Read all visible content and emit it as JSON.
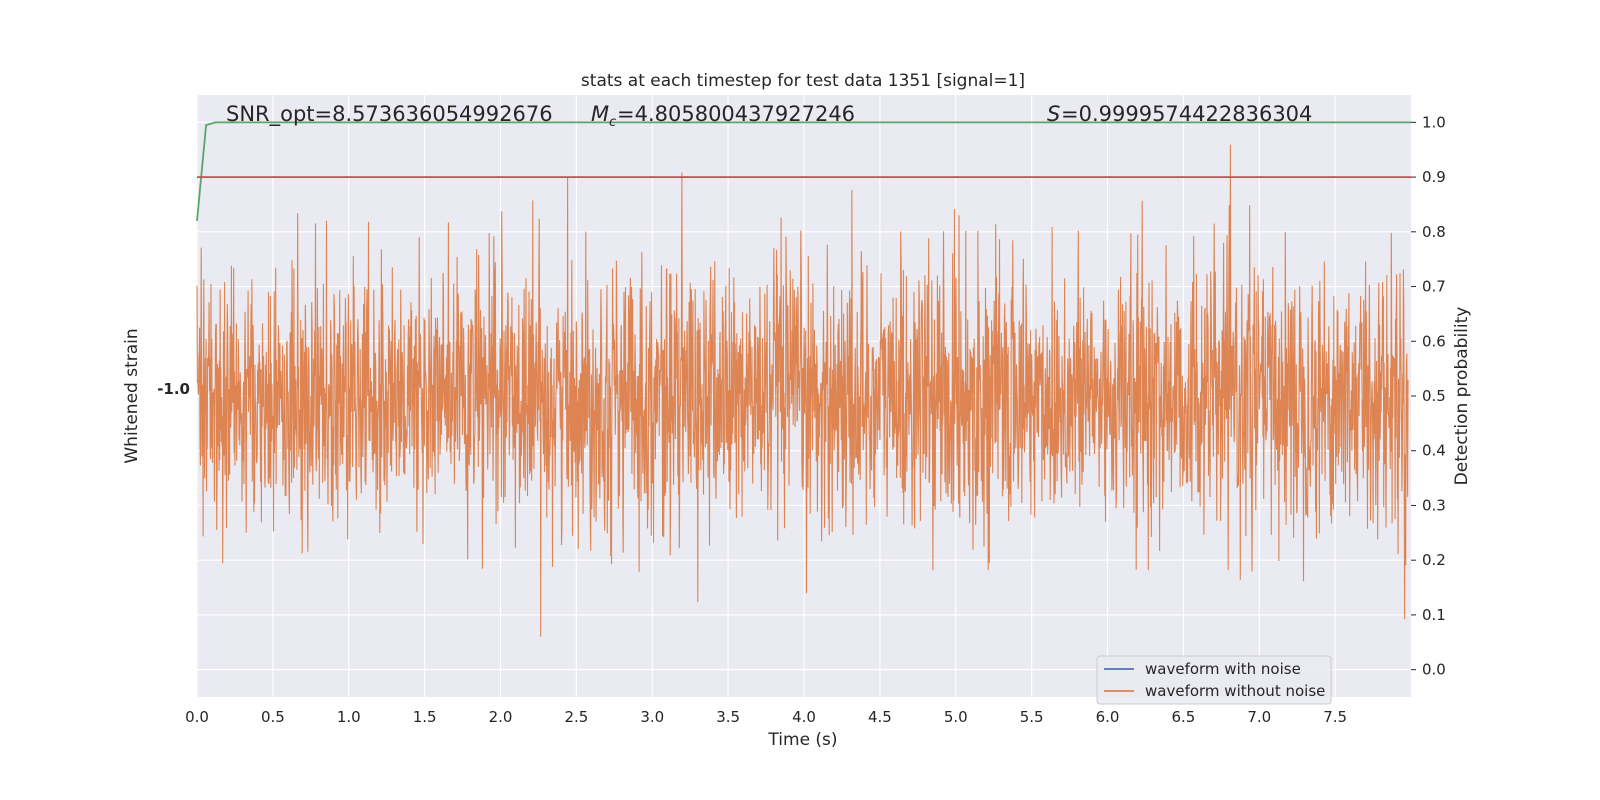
{
  "chart_data": {
    "type": "line",
    "title": "stats at each timestep for test data 1351 [signal=1]",
    "xlabel": "Time (s)",
    "ylabel_left": "Whitened strain",
    "ylabel_right": "Detection probability",
    "xlim": [
      0.0,
      8.0
    ],
    "ylim_right": [
      -0.05,
      1.05
    ],
    "x_ticks": [
      0.0,
      0.5,
      1.0,
      1.5,
      2.0,
      2.5,
      3.0,
      3.5,
      4.0,
      4.5,
      5.0,
      5.5,
      6.0,
      6.5,
      7.0,
      7.5
    ],
    "x_tick_labels": [
      "0.0",
      "0.5",
      "1.0",
      "1.5",
      "2.0",
      "2.5",
      "3.0",
      "3.5",
      "4.0",
      "4.5",
      "5.0",
      "5.5",
      "6.0",
      "6.5",
      "7.0",
      "7.5"
    ],
    "y_right_ticks": [
      0.0,
      0.1,
      0.2,
      0.3,
      0.4,
      0.5,
      0.6,
      0.7,
      0.8,
      0.9,
      1.0
    ],
    "y_right_tick_labels": [
      "0.0",
      "0.1",
      "0.2",
      "0.3",
      "0.4",
      "0.5",
      "0.6",
      "0.7",
      "0.8",
      "0.9",
      "1.0"
    ],
    "left_tick_label": "-1.0",
    "grid": true,
    "annotations": {
      "snr": "SNR_opt=8.573636054992676",
      "mc": "=4.805800437927246",
      "s": "=0.9999574422836304"
    },
    "legend": {
      "placement": "lower right",
      "entries": [
        {
          "name": "waveform with noise",
          "color": "#4c72b0"
        },
        {
          "name": "waveform without noise",
          "color": "#dd8452"
        }
      ]
    },
    "series": [
      {
        "name": "waveform with noise",
        "color": "#4c72b0",
        "kind": "noise"
      },
      {
        "name": "waveform without noise",
        "color": "#dd8452",
        "kind": "noise",
        "center": 0.5,
        "max": 1.0,
        "min": 0.0
      },
      {
        "kind": "probability",
        "color": "#55a868",
        "x": [
          0.0,
          0.06,
          0.12,
          0.2,
          8.0
        ],
        "y": [
          0.82,
          0.995,
          1.0,
          1.0,
          1.0
        ]
      },
      {
        "kind": "threshold",
        "color": "#c44e52",
        "y": 0.9
      }
    ],
    "background": "#eaeaf2"
  }
}
